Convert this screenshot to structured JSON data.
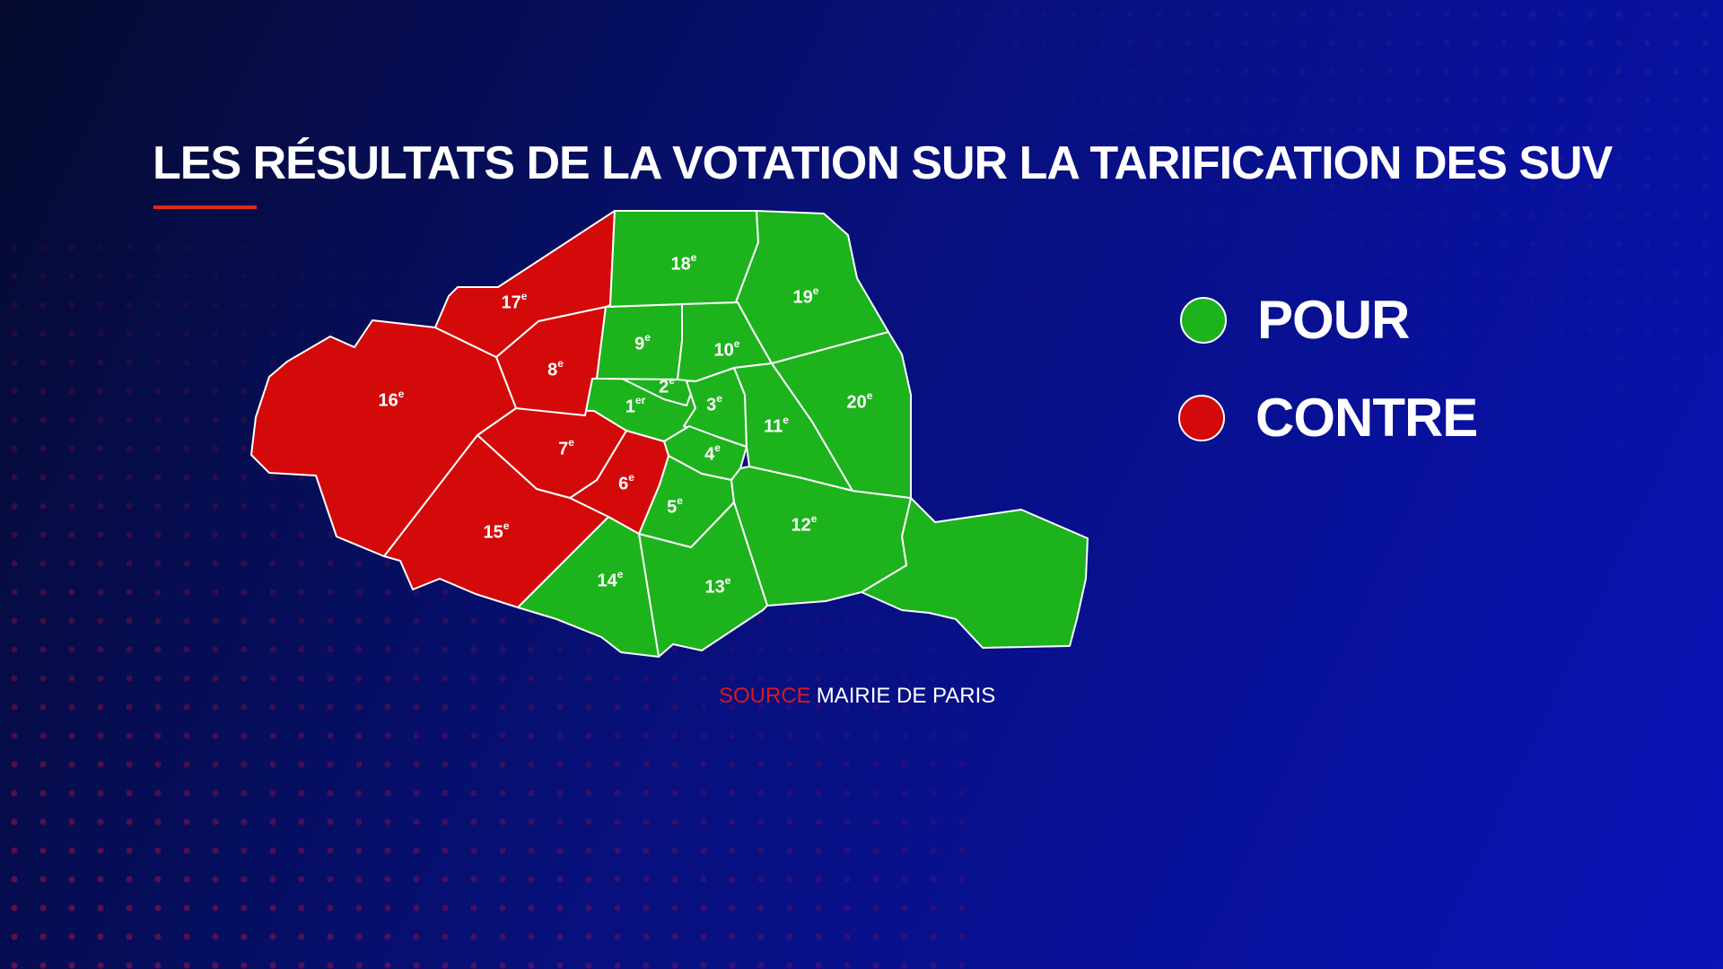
{
  "title": "LES RÉSULTATS DE LA VOTATION SUR LA TARIFICATION DES SUV",
  "colors": {
    "pour": "#1db31d",
    "contre": "#d40a0a",
    "accent": "#e0281c"
  },
  "legend": {
    "pour": {
      "label": "POUR"
    },
    "contre": {
      "label": "CONTRE"
    }
  },
  "districts": [
    {
      "id": "1",
      "label": "1er",
      "vote": "pour"
    },
    {
      "id": "2",
      "label": "2e",
      "vote": "pour"
    },
    {
      "id": "3",
      "label": "3e",
      "vote": "pour"
    },
    {
      "id": "4",
      "label": "4e",
      "vote": "pour"
    },
    {
      "id": "5",
      "label": "5e",
      "vote": "pour"
    },
    {
      "id": "6",
      "label": "6e",
      "vote": "contre"
    },
    {
      "id": "7",
      "label": "7e",
      "vote": "contre"
    },
    {
      "id": "8",
      "label": "8e",
      "vote": "contre"
    },
    {
      "id": "9",
      "label": "9e",
      "vote": "pour"
    },
    {
      "id": "10",
      "label": "10e",
      "vote": "pour"
    },
    {
      "id": "11",
      "label": "11e",
      "vote": "pour"
    },
    {
      "id": "12",
      "label": "12e",
      "vote": "pour"
    },
    {
      "id": "13",
      "label": "13e",
      "vote": "pour"
    },
    {
      "id": "14",
      "label": "14e",
      "vote": "pour"
    },
    {
      "id": "15",
      "label": "15e",
      "vote": "contre"
    },
    {
      "id": "16",
      "label": "16e",
      "vote": "contre"
    },
    {
      "id": "17",
      "label": "17e",
      "vote": "contre"
    },
    {
      "id": "18",
      "label": "18e",
      "vote": "pour"
    },
    {
      "id": "19",
      "label": "19e",
      "vote": "pour"
    },
    {
      "id": "20",
      "label": "20e",
      "vote": "pour"
    }
  ],
  "source": {
    "label": "SOURCE",
    "value": "MAIRIE DE PARIS"
  }
}
